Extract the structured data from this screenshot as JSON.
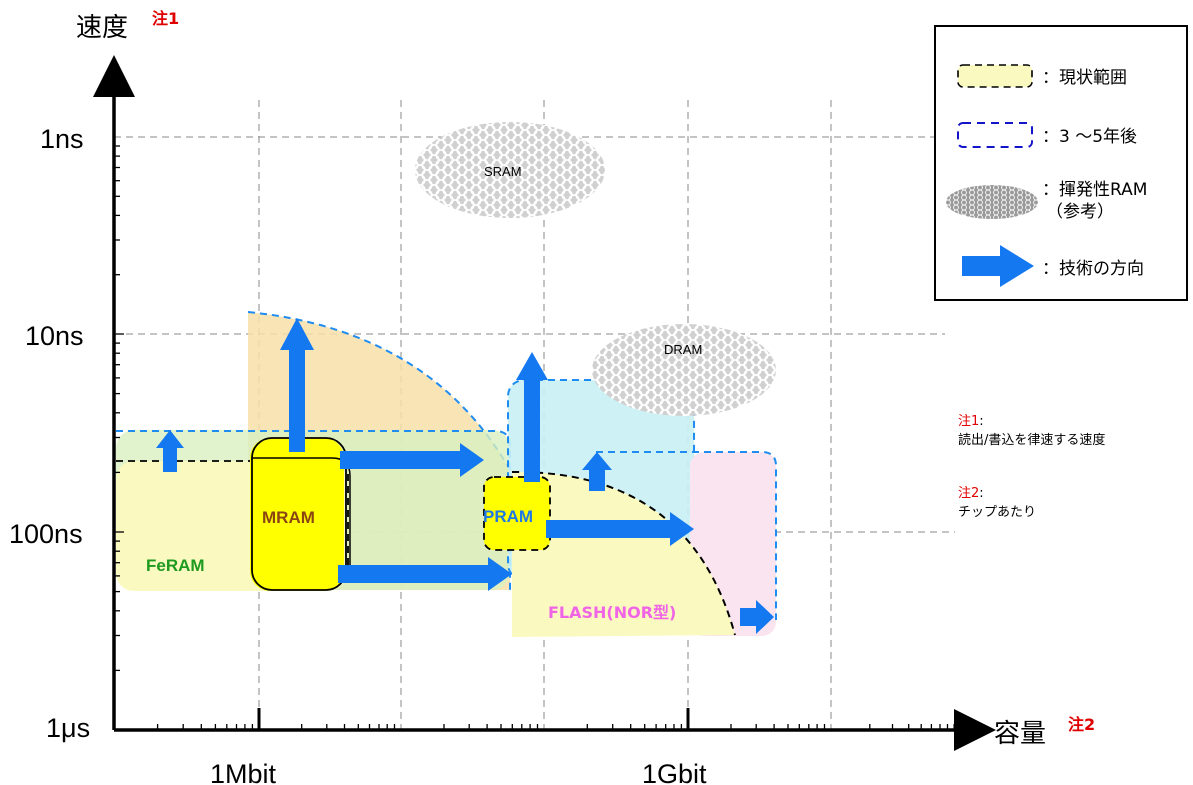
{
  "axes": {
    "y_title": "速度",
    "y_note": "注1",
    "x_title": "容量",
    "x_note": "注2",
    "y_ticks": [
      "1ns",
      "10ns",
      "100ns",
      "1μs"
    ],
    "x_ticks": [
      "1Mbit",
      "1Gbit"
    ]
  },
  "regions": {
    "feram": "FeRAM",
    "mram": "MRAM",
    "pram": "PRAM",
    "flash": "FLASH(NOR型)",
    "sram": "SRAM",
    "dram": "DRAM"
  },
  "legend": {
    "current": "：現状範囲",
    "future": "：3 ～5年後",
    "volatile_line1": "：揮発性RAM",
    "volatile_line2": "（参考）",
    "direction": "：技術の方向"
  },
  "notes": {
    "note1_title": "注1",
    "note1_suffix": ":",
    "note1_text": "読出/書込を律速する速度",
    "note2_title": "注2",
    "note2_suffix": ":",
    "note2_text": "チップあたり"
  },
  "colors": {
    "yellow_current": "#fafac0",
    "mram_yellow": "#ffff00",
    "orange_future": "#f8dfa8",
    "green_future": "#d8f0c0",
    "cyan_future": "#c8f0f4",
    "pink_future": "#fae4f0",
    "arrow_blue": "#1478f0",
    "dash_blue": "#1e8cf0",
    "feram_text": "#1e9a1e",
    "mram_text": "#8b4513",
    "pram_text": "#1e78e6",
    "flash_text": "#f064e6"
  }
}
